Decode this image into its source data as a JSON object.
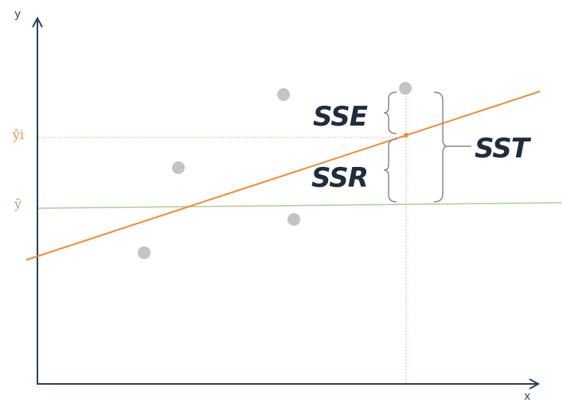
{
  "axes": {
    "x_label": "x",
    "y_label": "y"
  },
  "labels": {
    "yhat": "ŷi",
    "ybar": "ȳ",
    "sse": "SSE",
    "ssr": "SSR",
    "sst": "SST"
  },
  "colors": {
    "axis": "#2c3e66",
    "regression_line": "#ee8c3a",
    "mean_line": "#a9cf96",
    "guide_line": "#f0b98f",
    "points": "#c4c4c4",
    "brace": "#8a8a8a",
    "text": "#1f2d3d"
  }
}
